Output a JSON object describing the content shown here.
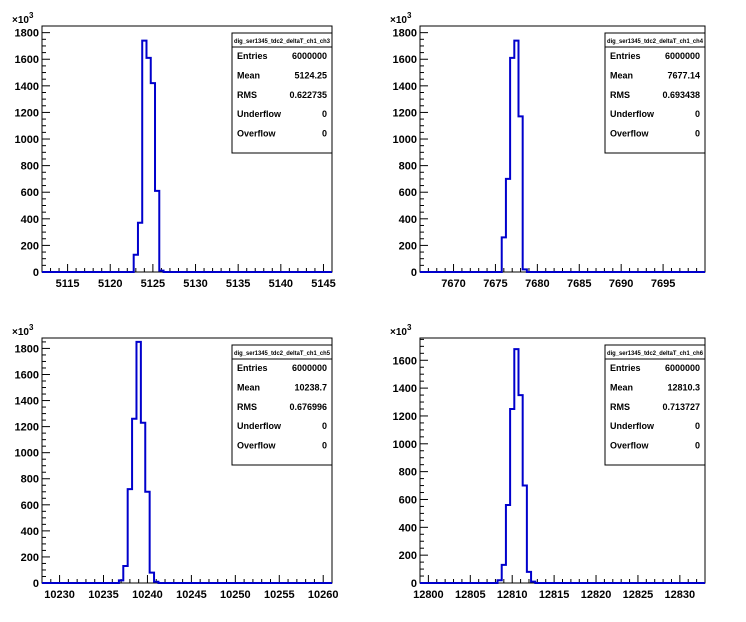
{
  "chart_data": [
    {
      "type": "histogram",
      "title": "dig_ser1345_tdc2_deltaT_ch1_ch3",
      "y_exponent_label": "×10",
      "y_exponent_power": "3",
      "xlim": [
        5112,
        5146
      ],
      "ylim": [
        0,
        1850
      ],
      "xticks": [
        5115,
        5120,
        5125,
        5130,
        5135,
        5140,
        5145
      ],
      "yticks": [
        0,
        200,
        400,
        600,
        800,
        1000,
        1200,
        1400,
        1600,
        1800
      ],
      "bin_width": 0.5,
      "bins": [
        {
          "x": 5122.5,
          "y": 0
        },
        {
          "x": 5123.0,
          "y": 130
        },
        {
          "x": 5123.5,
          "y": 370
        },
        {
          "x": 5124.0,
          "y": 1740
        },
        {
          "x": 5124.5,
          "y": 1610
        },
        {
          "x": 5125.0,
          "y": 1420
        },
        {
          "x": 5125.5,
          "y": 610
        },
        {
          "x": 5126.0,
          "y": 10
        }
      ],
      "stats": {
        "name": "dig_ser1345_tdc2_deltaT_ch1_ch3",
        "rows": [
          {
            "label": "Entries",
            "value": "6000000"
          },
          {
            "label": "Mean",
            "value": "5124.25"
          },
          {
            "label": "RMS",
            "value": "0.622735"
          },
          {
            "label": "Underflow",
            "value": "0"
          },
          {
            "label": "Overflow",
            "value": "0"
          }
        ]
      },
      "line_color": "#0000cc"
    },
    {
      "type": "histogram",
      "title": "dig_ser1345_tdc2_deltaT_ch1_ch4",
      "y_exponent_label": "×10",
      "y_exponent_power": "3",
      "xlim": [
        7666,
        7700
      ],
      "ylim": [
        0,
        1850
      ],
      "xticks": [
        7670,
        7675,
        7680,
        7685,
        7690,
        7695
      ],
      "yticks": [
        0,
        200,
        400,
        600,
        800,
        1000,
        1200,
        1400,
        1600,
        1800
      ],
      "bin_width": 0.5,
      "bins": [
        {
          "x": 7675.5,
          "y": 0
        },
        {
          "x": 7676.0,
          "y": 260
        },
        {
          "x": 7676.5,
          "y": 700
        },
        {
          "x": 7677.0,
          "y": 1610
        },
        {
          "x": 7677.5,
          "y": 1740
        },
        {
          "x": 7678.0,
          "y": 1170
        },
        {
          "x": 7678.5,
          "y": 20
        }
      ],
      "stats": {
        "name": "dig_ser1345_tdc2_deltaT_ch1_ch4",
        "rows": [
          {
            "label": "Entries",
            "value": "6000000"
          },
          {
            "label": "Mean",
            "value": "7677.14"
          },
          {
            "label": "RMS",
            "value": "0.693438"
          },
          {
            "label": "Underflow",
            "value": "0"
          },
          {
            "label": "Overflow",
            "value": "0"
          }
        ]
      },
      "line_color": "#0000cc"
    },
    {
      "type": "histogram",
      "title": "dig_ser1345_tdc2_deltaT_ch1_ch5",
      "y_exponent_label": "×10",
      "y_exponent_power": "3",
      "xlim": [
        10228,
        10261
      ],
      "ylim": [
        0,
        1880
      ],
      "xticks": [
        10230,
        10235,
        10240,
        10245,
        10250,
        10255,
        10260
      ],
      "yticks": [
        0,
        200,
        400,
        600,
        800,
        1000,
        1200,
        1400,
        1600,
        1800
      ],
      "bin_width": 0.5,
      "bins": [
        {
          "x": 10237.0,
          "y": 20
        },
        {
          "x": 10237.5,
          "y": 130
        },
        {
          "x": 10238.0,
          "y": 720
        },
        {
          "x": 10238.5,
          "y": 1260
        },
        {
          "x": 10239.0,
          "y": 1850
        },
        {
          "x": 10239.5,
          "y": 1230
        },
        {
          "x": 10240.0,
          "y": 700
        },
        {
          "x": 10240.5,
          "y": 80
        },
        {
          "x": 10241.0,
          "y": 10
        }
      ],
      "stats": {
        "name": "dig_ser1345_tdc2_deltaT_ch1_ch5",
        "rows": [
          {
            "label": "Entries",
            "value": "6000000"
          },
          {
            "label": "Mean",
            "value": "10238.7"
          },
          {
            "label": "RMS",
            "value": "0.676996"
          },
          {
            "label": "Underflow",
            "value": "0"
          },
          {
            "label": "Overflow",
            "value": "0"
          }
        ]
      },
      "line_color": "#0000cc"
    },
    {
      "type": "histogram",
      "title": "dig_ser1345_tdc2_deltaT_ch1_ch6",
      "y_exponent_label": "×10",
      "y_exponent_power": "3",
      "xlim": [
        12799,
        12833
      ],
      "ylim": [
        0,
        1760
      ],
      "xticks": [
        12800,
        12805,
        12810,
        12815,
        12820,
        12825,
        12830
      ],
      "yticks": [
        0,
        200,
        400,
        600,
        800,
        1000,
        1200,
        1400,
        1600
      ],
      "bin_width": 0.5,
      "bins": [
        {
          "x": 12808.5,
          "y": 20
        },
        {
          "x": 12809.0,
          "y": 130
        },
        {
          "x": 12809.5,
          "y": 560
        },
        {
          "x": 12810.0,
          "y": 1250
        },
        {
          "x": 12810.5,
          "y": 1680
        },
        {
          "x": 12811.0,
          "y": 1350
        },
        {
          "x": 12811.5,
          "y": 700
        },
        {
          "x": 12812.0,
          "y": 80
        },
        {
          "x": 12812.5,
          "y": 10
        }
      ],
      "stats": {
        "name": "dig_ser1345_tdc2_deltaT_ch1_ch6",
        "rows": [
          {
            "label": "Entries",
            "value": "6000000"
          },
          {
            "label": "Mean",
            "value": "12810.3"
          },
          {
            "label": "RMS",
            "value": "0.713727"
          },
          {
            "label": "Underflow",
            "value": "0"
          },
          {
            "label": "Overflow",
            "value": "0"
          }
        ]
      },
      "line_color": "#0000cc"
    }
  ]
}
